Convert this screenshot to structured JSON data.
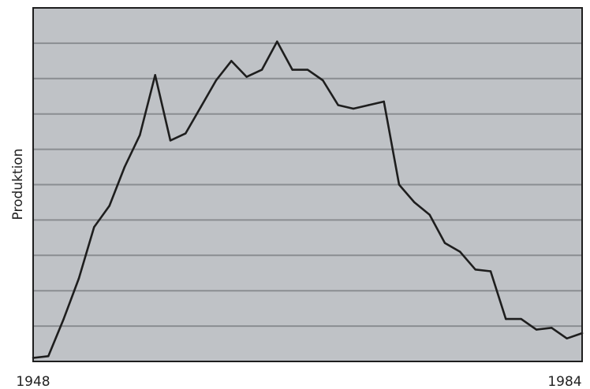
{
  "chart_data": {
    "type": "line",
    "title": "",
    "xlabel": "",
    "ylabel": "Produktion",
    "xlim": [
      1948,
      1984
    ],
    "ylim": [
      0,
      100
    ],
    "x_tick_labels": [
      "1948",
      "1984"
    ],
    "y_gridlines": [
      10,
      20,
      30,
      40,
      50,
      60,
      70,
      80,
      90
    ],
    "grid": true,
    "legend": "none",
    "colors": {
      "plot_background": "#bfc2c6",
      "gridline": "#8a8d91",
      "line": "#1e1e1e",
      "frame": "#1e1e1e"
    },
    "series": [
      {
        "x": [
          1948,
          1949,
          1950,
          1951,
          1952,
          1953,
          1954,
          1955,
          1956,
          1957,
          1958,
          1959,
          1960,
          1961,
          1962,
          1963,
          1964,
          1965,
          1966,
          1967,
          1968,
          1969,
          1970,
          1971,
          1972,
          1973,
          1974,
          1975,
          1976,
          1977,
          1978,
          1979,
          1980,
          1981,
          1982,
          1983,
          1984
        ],
        "y": [
          1.0,
          1.5,
          12.0,
          23.5,
          38.0,
          44.0,
          55.0,
          64.0,
          81.0,
          62.5,
          64.5,
          72.0,
          79.5,
          85.0,
          80.5,
          82.5,
          90.5,
          82.5,
          82.5,
          79.5,
          72.5,
          71.5,
          72.5,
          73.5,
          50.0,
          45.0,
          41.5,
          33.5,
          31.0,
          26.0,
          25.5,
          12.0,
          12.0,
          9.0,
          9.5,
          6.5,
          8.0
        ]
      }
    ]
  }
}
